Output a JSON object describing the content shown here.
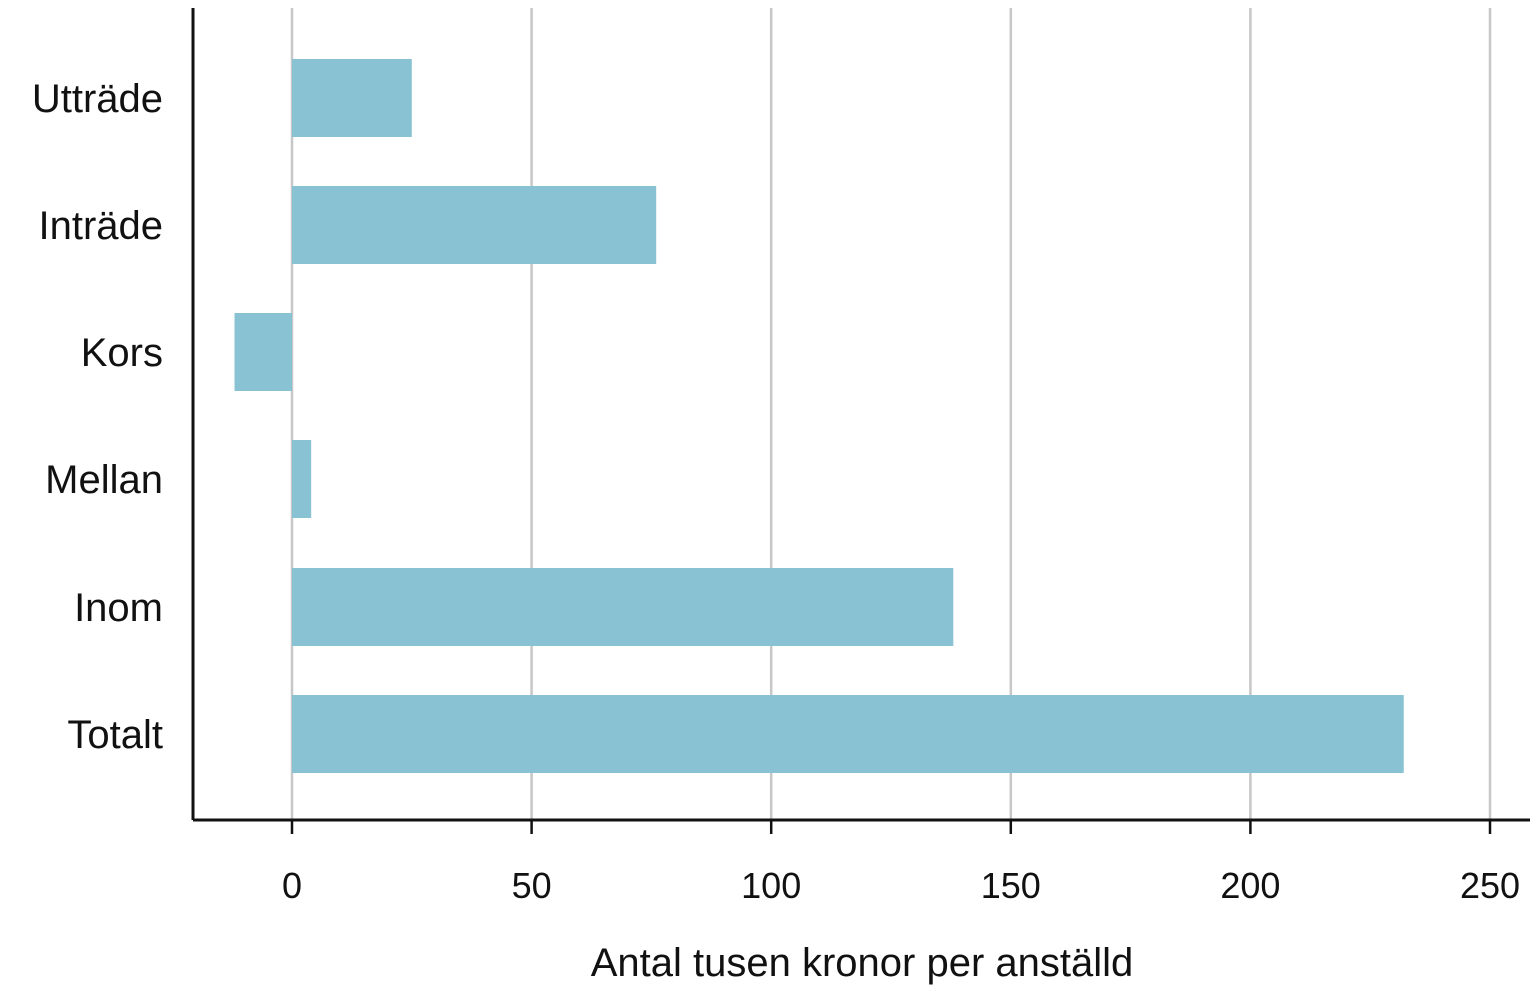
{
  "chart_data": {
    "type": "bar",
    "orientation": "horizontal",
    "categories": [
      "Utträde",
      "Inträde",
      "Kors",
      "Mellan",
      "Inom",
      "Totalt"
    ],
    "values": [
      25,
      76,
      -12,
      4,
      138,
      232
    ],
    "xlabel": "Antal tusen kronor per anställd",
    "ylabel": "",
    "xlim": [
      -20,
      260
    ],
    "xticks": [
      0,
      50,
      100,
      150,
      200,
      250
    ],
    "xtick_labels": [
      "0",
      "50",
      "100",
      "150",
      "200",
      "250"
    ],
    "grid": "vertical",
    "legend": "none",
    "colors": {
      "bar": "#89c2d2",
      "grid": "#c7c7c7",
      "axis": "#111111",
      "text": "#111111"
    }
  }
}
